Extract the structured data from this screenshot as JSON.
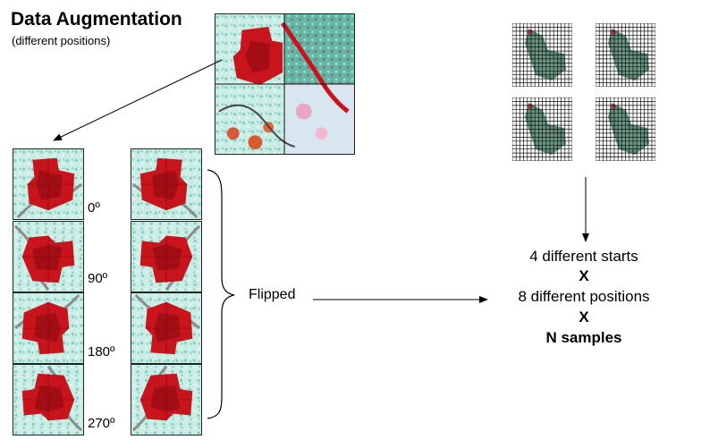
{
  "header": {
    "title": "Data Augmentation",
    "subtitle": "(different positions)"
  },
  "rotations": {
    "labels": [
      "0º",
      "90º",
      "180º",
      "270º"
    ]
  },
  "flipped_label": "Flipped",
  "formula": {
    "line1": "4 different starts",
    "times1": "X",
    "line2": "8 different positions",
    "times2": "X",
    "line3": "N samples"
  },
  "colors": {
    "field_red": "#c8141c",
    "background_cyan": "#bfe7e1",
    "grid_line": "#111111"
  }
}
